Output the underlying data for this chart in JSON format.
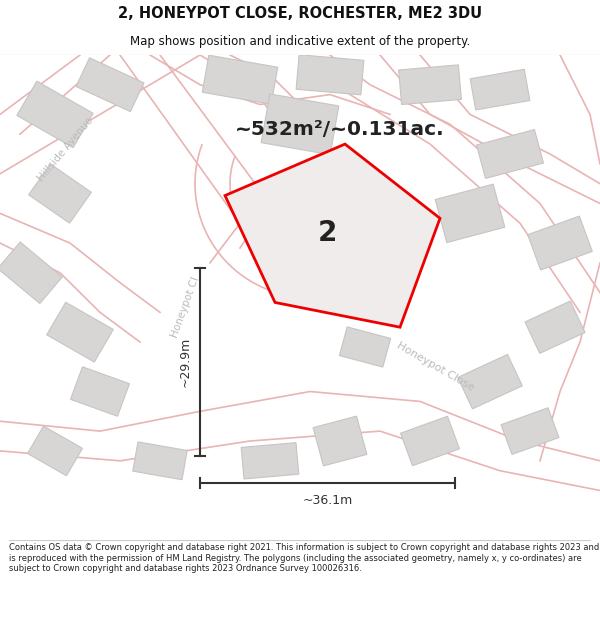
{
  "title": "2, HONEYPOT CLOSE, ROCHESTER, ME2 3DU",
  "subtitle": "Map shows position and indicative extent of the property.",
  "area_label": "~532m²/~0.131ac.",
  "property_number": "2",
  "dim_vertical": "~29.9m",
  "dim_horizontal": "~36.1m",
  "footer": "Contains OS data © Crown copyright and database right 2021. This information is subject to Crown copyright and database rights 2023 and is reproduced with the permission of HM Land Registry. The polygons (including the associated geometry, namely x, y co-ordinates) are subject to Crown copyright and database rights 2023 Ordnance Survey 100026316.",
  "bg_color": "#ffffff",
  "map_bg": "#f7f4f4",
  "road_stroke": "#e8b4b4",
  "building_fill": "#d8d5d5",
  "building_edge": "#c8c4c4",
  "property_fill": "#f0ecec",
  "property_edge": "#ee0000",
  "dim_color": "#333333",
  "street_label_color": "#bbbbbb",
  "title_color": "#111111",
  "area_label_color": "#222222",
  "footer_color": "#222222"
}
